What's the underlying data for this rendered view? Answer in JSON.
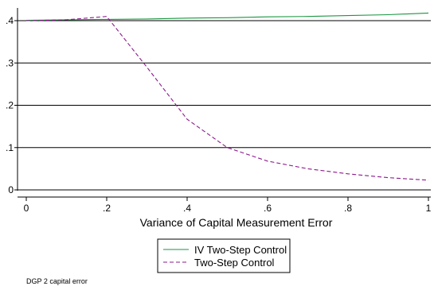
{
  "chart_data": {
    "type": "line",
    "xlabel": "Variance of Capital Measurement Error",
    "xlim": [
      0,
      1
    ],
    "ylim": [
      0,
      0.42
    ],
    "x_ticks": [
      {
        "value": 0,
        "label": "0"
      },
      {
        "value": 0.2,
        "label": ".2"
      },
      {
        "value": 0.4,
        "label": ".4"
      },
      {
        "value": 0.6,
        "label": ".6"
      },
      {
        "value": 0.8,
        "label": ".8"
      },
      {
        "value": 1,
        "label": "1"
      }
    ],
    "y_ticks": [
      {
        "value": 0,
        "label": "0"
      },
      {
        "value": 0.1,
        "label": ".1"
      },
      {
        "value": 0.2,
        "label": ".2"
      },
      {
        "value": 0.3,
        "label": ".3"
      },
      {
        "value": 0.4,
        "label": ".4"
      }
    ],
    "grid": true,
    "legend_position": "bottom",
    "x": [
      0,
      0.1,
      0.2,
      0.3,
      0.4,
      0.5,
      0.6,
      0.7,
      0.8,
      0.9,
      1.0
    ],
    "series": [
      {
        "name": "IV Two-Step Control",
        "color": "#1a9641",
        "dash": "solid",
        "values": [
          0.401,
          0.402,
          0.403,
          0.404,
          0.406,
          0.407,
          0.409,
          0.41,
          0.412,
          0.414,
          0.418
        ]
      },
      {
        "name": "Two-Step Control",
        "color": "#8b1a8b",
        "dash": "dashed",
        "values": [
          0.4,
          0.402,
          0.41,
          0.29,
          0.167,
          0.1,
          0.068,
          0.05,
          0.038,
          0.029,
          0.023
        ]
      }
    ],
    "note": "DGP 2 capital error"
  }
}
